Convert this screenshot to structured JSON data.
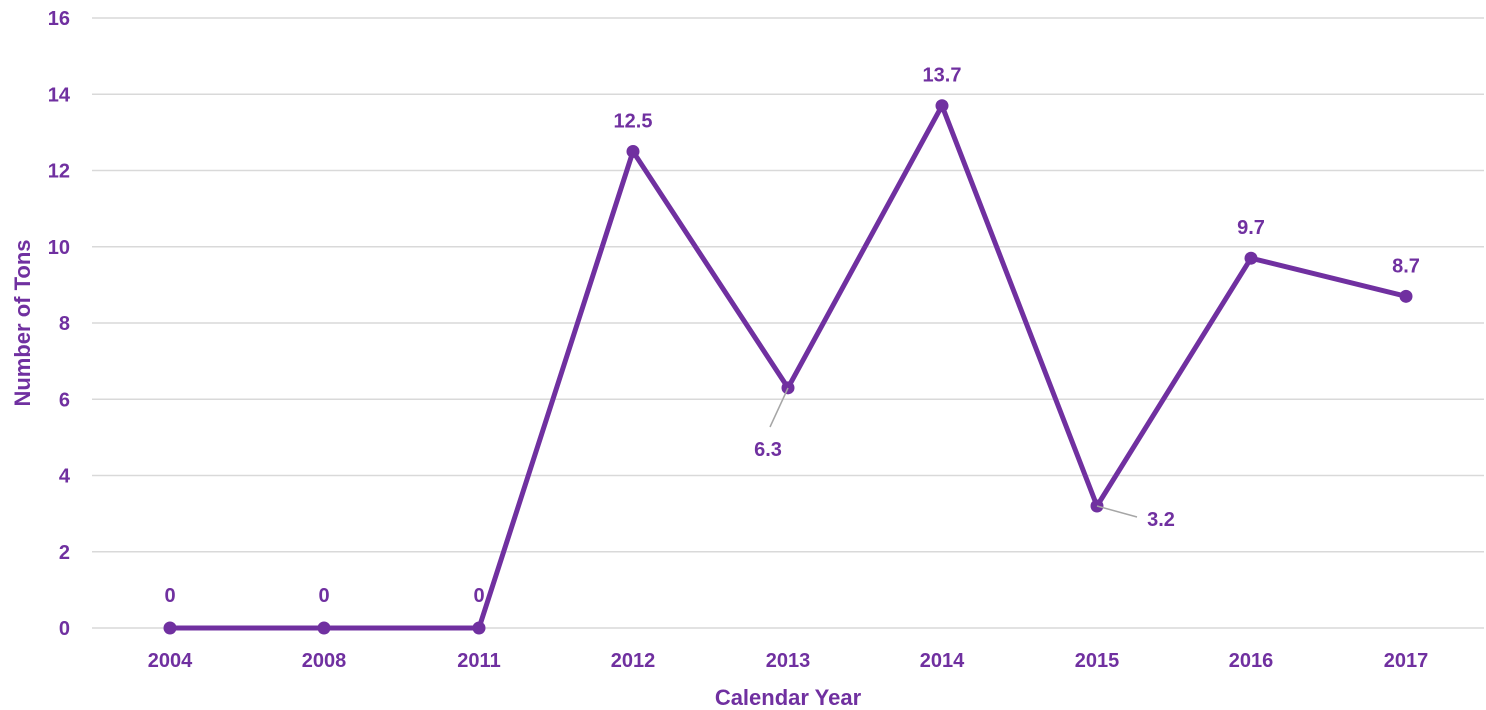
{
  "colors": {
    "accent": "#7030A0",
    "grid": "#D9D9D9",
    "leader": "#A6A6A6",
    "background": "#FFFFFF"
  },
  "chart_data": {
    "type": "line",
    "title": "",
    "xlabel": "Calendar Year",
    "ylabel": "Number of Tons",
    "categories": [
      "2004",
      "2008",
      "2011",
      "2012",
      "2013",
      "2014",
      "2015",
      "2016",
      "2017"
    ],
    "series": [
      {
        "values": [
          0,
          0,
          0,
          12.5,
          6.3,
          13.7,
          3.2,
          9.7,
          8.7
        ]
      }
    ],
    "data_labels": [
      "0",
      "0",
      "0",
      "12.5",
      "6.3",
      "13.7",
      "3.2",
      "9.7",
      "8.7"
    ],
    "ylim": [
      0,
      16
    ],
    "yticks": [
      "0",
      "2",
      "4",
      "6",
      "8",
      "10",
      "12",
      "14",
      "16"
    ],
    "grid": true,
    "legend": "none",
    "markers": "circle"
  }
}
